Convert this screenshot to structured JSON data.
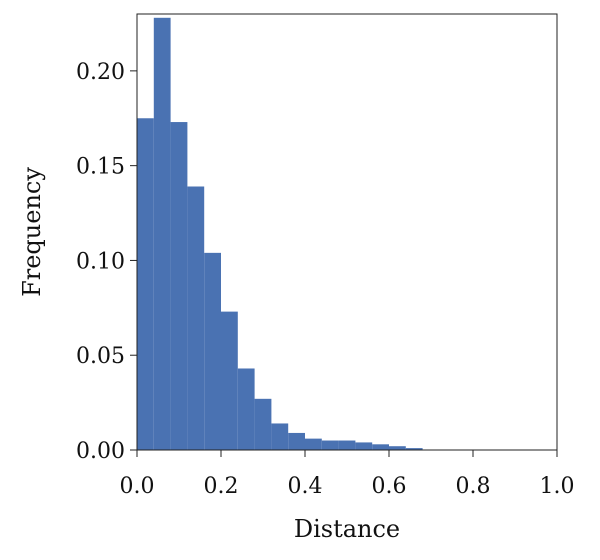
{
  "chart_data": {
    "type": "bar",
    "title": "",
    "xlabel": "Distance",
    "ylabel": "Frequency",
    "xlim": [
      0.0,
      1.0
    ],
    "ylim": [
      0.0,
      0.23
    ],
    "grid": false,
    "bar_color": "#4a72b2",
    "bin_width": 0.04,
    "bins_start": [
      0.0,
      0.04,
      0.08,
      0.12,
      0.16,
      0.2,
      0.24,
      0.28,
      0.32,
      0.36,
      0.4,
      0.44,
      0.48,
      0.52,
      0.56,
      0.6,
      0.64
    ],
    "values": [
      0.175,
      0.228,
      0.173,
      0.139,
      0.104,
      0.073,
      0.043,
      0.027,
      0.014,
      0.009,
      0.006,
      0.005,
      0.005,
      0.004,
      0.003,
      0.002,
      0.001
    ],
    "x_ticks": [
      {
        "value": 0.0,
        "label": "0.0"
      },
      {
        "value": 0.2,
        "label": "0.2"
      },
      {
        "value": 0.4,
        "label": "0.4"
      },
      {
        "value": 0.6,
        "label": "0.6"
      },
      {
        "value": 0.8,
        "label": "0.8"
      },
      {
        "value": 1.0,
        "label": "1.0"
      }
    ],
    "y_ticks": [
      {
        "value": 0.0,
        "label": "0.00"
      },
      {
        "value": 0.05,
        "label": "0.05"
      },
      {
        "value": 0.1,
        "label": "0.10"
      },
      {
        "value": 0.15,
        "label": "0.15"
      },
      {
        "value": 0.2,
        "label": "0.20"
      }
    ]
  }
}
